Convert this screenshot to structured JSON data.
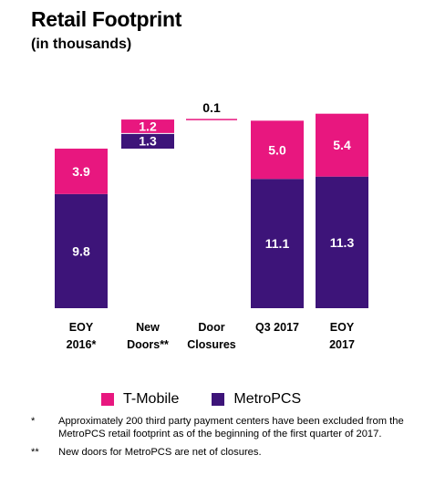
{
  "title": "Retail Footprint",
  "subtitle": "(in thousands)",
  "colors": {
    "tmobile": "#e8177f",
    "metropcs": "#3d1479"
  },
  "chart_data": {
    "type": "bar",
    "stacked": true,
    "waterfall": true,
    "categories": [
      {
        "line1": "EOY",
        "line2": "2016*"
      },
      {
        "line1": "New",
        "line2": "Doors**"
      },
      {
        "line1": "Door",
        "line2": "Closures"
      },
      {
        "line1": "Q3 2017",
        "line2": ""
      },
      {
        "line1": "EOY",
        "line2": "2017"
      }
    ],
    "series": [
      {
        "name": "MetroPCS",
        "values": [
          9.8,
          1.3,
          0,
          11.1,
          11.3
        ],
        "labels": [
          "9.8",
          "1.3",
          "",
          "11.1",
          "11.3"
        ]
      },
      {
        "name": "T-Mobile",
        "values": [
          3.9,
          1.2,
          0,
          5.0,
          5.4
        ],
        "labels": [
          "3.9",
          "1.2",
          "",
          "5.0",
          "5.4"
        ]
      }
    ],
    "closures": {
      "value": 0.1,
      "label": "0.1"
    },
    "legend_position": "bottom",
    "grid": false
  },
  "legend": [
    {
      "name": "T-Mobile",
      "color": "#e8177f"
    },
    {
      "name": "MetroPCS",
      "color": "#3d1479"
    }
  ],
  "footnotes": [
    {
      "mark": "*",
      "text": "Approximately 200 third party payment centers have been excluded from the MetroPCS retail footprint as of the beginning of the first quarter of 2017."
    },
    {
      "mark": "**",
      "text": "New doors for MetroPCS are net of closures."
    }
  ]
}
